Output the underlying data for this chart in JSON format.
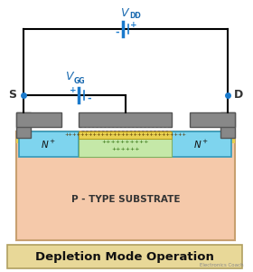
{
  "bg_color": "#ffffff",
  "substrate_color": "#f5c9aa",
  "substrate_border": "#c8a070",
  "n_region_color": "#7ed4ee",
  "n_region_border": "#3399bb",
  "channel_color": "#c5e8a8",
  "oxide_color": "#e8d050",
  "gate_metal_color": "#888888",
  "wire_color": "#000000",
  "battery_color": "#1a7acc",
  "label_color": "#1a6ab0",
  "title_bg": "#e8d898",
  "title_border": "#b0a060",
  "title_text": "Depletion Mode Operation",
  "watermark": "Electronics Coach",
  "p_sub_label": "P - TYPE SUBSTRATE"
}
